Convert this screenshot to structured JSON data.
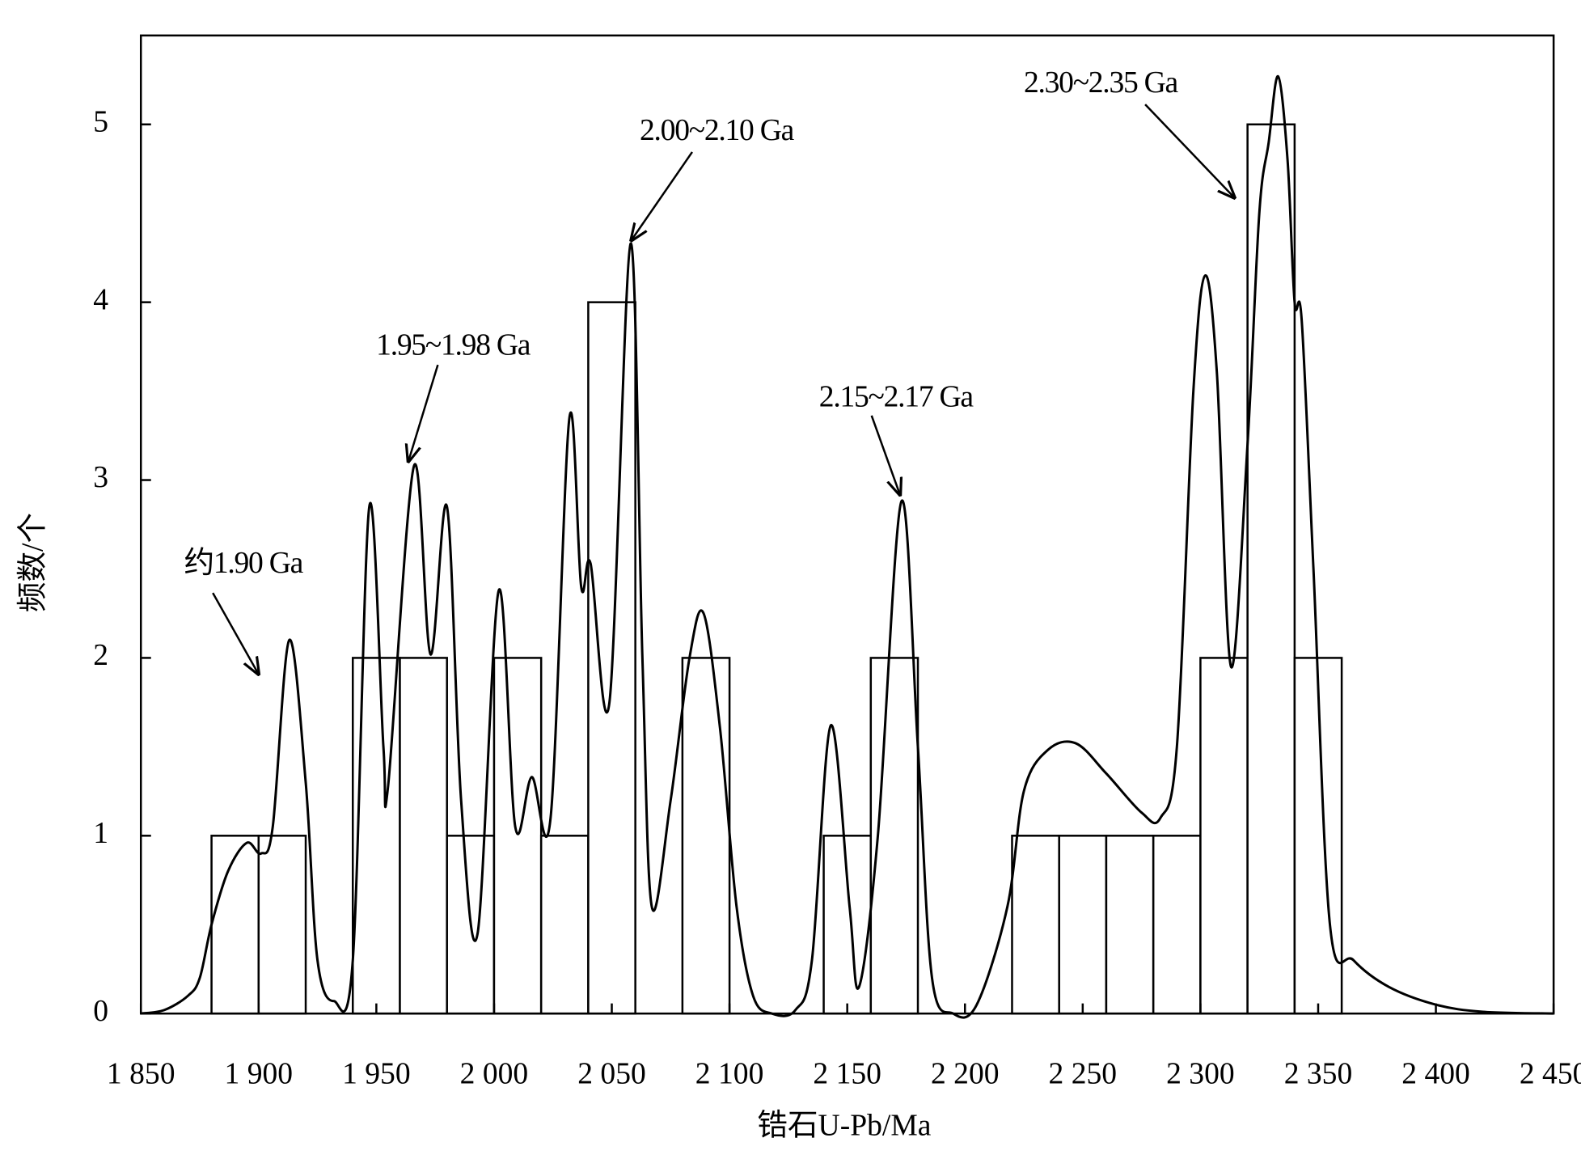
{
  "chart_data": {
    "type": "histogram",
    "xlabel": "锆石U-Pb/Ma",
    "ylabel": "频数/个",
    "bins": [
      1880,
      1900,
      1920,
      1940,
      1960,
      1980,
      2000,
      2020,
      2040,
      2060,
      2080,
      2100,
      2120,
      2140,
      2160,
      2180,
      2200,
      2220,
      2240,
      2260,
      2280,
      2300,
      2320,
      2340,
      2360
    ],
    "values": [
      1,
      1,
      0,
      2,
      2,
      1,
      2,
      1,
      4,
      0,
      2,
      0,
      0,
      1,
      2,
      0,
      0,
      1,
      1,
      1,
      1,
      2,
      5,
      2
    ],
    "color": "#ffffff",
    "edgecolor": "#000000",
    "curve": {
      "color": "#000000",
      "x": [
        1850,
        1860,
        1870,
        1875,
        1880,
        1887,
        1895,
        1901,
        1906,
        1913,
        1920,
        1925,
        1932,
        1940,
        1947,
        1953,
        1955,
        1966,
        1973,
        1980,
        1986,
        1993,
        2002,
        2009,
        2016,
        2024,
        2032,
        2037,
        2041,
        2049,
        2058,
        2063,
        2067,
        2075,
        2083,
        2089,
        2096,
        2103,
        2110,
        2118,
        2128,
        2135,
        2143,
        2151,
        2155,
        2163,
        2173,
        2180,
        2186,
        2195,
        2205,
        2218,
        2225,
        2235,
        2247,
        2260,
        2275,
        2283,
        2290,
        2297,
        2302,
        2307,
        2313,
        2320,
        2325,
        2329,
        2333,
        2337,
        2340,
        2343,
        2348,
        2355,
        2365,
        2380,
        2400,
        2420,
        2450
      ],
      "values": [
        0,
        0.02,
        0.1,
        0.2,
        0.5,
        0.8,
        0.96,
        0.9,
        1.05,
        2.1,
        1.3,
        0.3,
        0.07,
        0.3,
        2.85,
        1.5,
        1.28,
        3.08,
        2.02,
        2.85,
        1.2,
        0.45,
        2.38,
        1.05,
        1.33,
        1.1,
        3.35,
        2.4,
        2.53,
        1.75,
        4.33,
        2.0,
        0.6,
        1.2,
        2.0,
        2.25,
        1.6,
        0.6,
        0.1,
        0,
        0.02,
        0.3,
        1.62,
        0.6,
        0.15,
        1.0,
        2.88,
        1.5,
        0.2,
        0,
        0.05,
        0.6,
        1.25,
        1.48,
        1.52,
        1.35,
        1.13,
        1.1,
        1.5,
        3.5,
        4.15,
        3.6,
        1.95,
        3.2,
        4.5,
        4.9,
        5.27,
        4.8,
        4.0,
        3.9,
        2.5,
        0.5,
        0.3,
        0.15,
        0.05,
        0.01,
        0
      ]
    },
    "annotations": [
      "约1.90 Ga",
      "1.95~1.98 Ga",
      "2.00~2.10 Ga",
      "2.15~2.17 Ga",
      "2.30~2.35 Ga"
    ],
    "xlim": [
      1850,
      2450
    ],
    "xticks": [
      {
        "value": 1850,
        "label": "1 850"
      },
      {
        "value": 1900,
        "label": "1 900"
      },
      {
        "value": 1950,
        "label": "1 950"
      },
      {
        "value": 2000,
        "label": "2 000"
      },
      {
        "value": 2050,
        "label": "2 050"
      },
      {
        "value": 2100,
        "label": "2 100"
      },
      {
        "value": 2150,
        "label": "2 150"
      },
      {
        "value": 2200,
        "label": "2 200"
      },
      {
        "value": 2250,
        "label": "2 250"
      },
      {
        "value": 2300,
        "label": "2 300"
      },
      {
        "value": 2350,
        "label": "2 350"
      },
      {
        "value": 2400,
        "label": "2 400"
      },
      {
        "value": 2450,
        "label": "2 450"
      }
    ],
    "ylim": [
      0,
      5.5
    ],
    "yticks": [
      0,
      1,
      2,
      3,
      4,
      5
    ],
    "grid": false
  }
}
